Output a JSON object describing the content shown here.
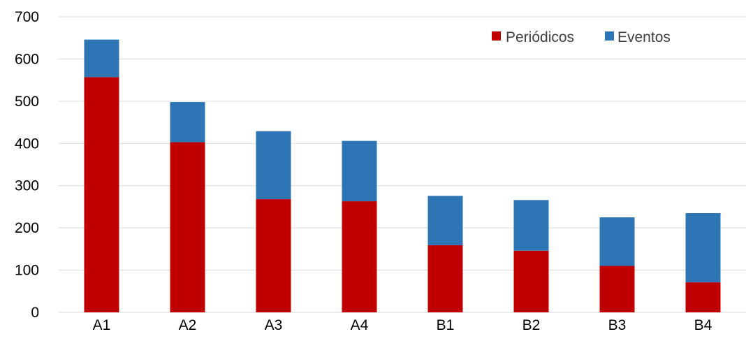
{
  "chart_data": {
    "type": "bar",
    "stacked": true,
    "categories": [
      "A1",
      "A2",
      "A3",
      "A4",
      "B1",
      "B2",
      "B3",
      "B4"
    ],
    "series": [
      {
        "name": "Periódicos",
        "color": "#C00000",
        "values": [
          557,
          403,
          268,
          263,
          159,
          146,
          110,
          71
        ]
      },
      {
        "name": "Eventos",
        "color": "#2E75B6",
        "values": [
          89,
          95,
          161,
          143,
          117,
          120,
          115,
          164
        ]
      }
    ],
    "title": "",
    "xlabel": "",
    "ylabel": "",
    "ylim": [
      0,
      700
    ],
    "yticks": [
      0,
      100,
      200,
      300,
      400,
      500,
      600,
      700
    ],
    "grid": true,
    "legend_position": "top-right"
  }
}
